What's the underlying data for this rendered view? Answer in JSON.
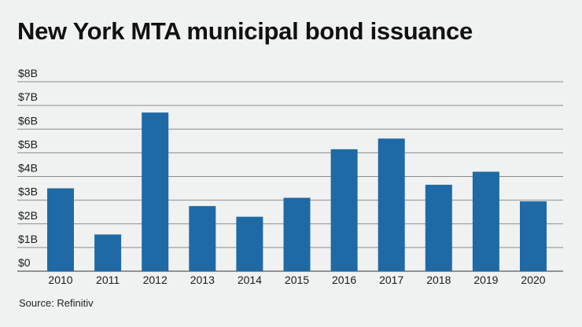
{
  "chart_data": {
    "type": "bar",
    "title": "New York MTA municipal bond issuance",
    "xlabel": "",
    "ylabel": "",
    "categories": [
      "2010",
      "2011",
      "2012",
      "2013",
      "2014",
      "2015",
      "2016",
      "2017",
      "2018",
      "2019",
      "2020"
    ],
    "values": [
      3.5,
      1.55,
      6.7,
      2.75,
      2.3,
      3.1,
      5.15,
      5.6,
      3.65,
      4.2,
      2.95
    ],
    "ylim": [
      0,
      8
    ],
    "yticks": [
      0,
      1,
      2,
      3,
      4,
      5,
      6,
      7,
      8
    ],
    "ytick_labels": [
      "$0",
      "$1B",
      "$2B",
      "$3B",
      "$4B",
      "$5B",
      "$6B",
      "$7B",
      "$8B"
    ],
    "grid": true,
    "bar_color": "#1f6aa5",
    "grid_color": "#8c8c8c",
    "source": "Source: Refinitiv"
  }
}
